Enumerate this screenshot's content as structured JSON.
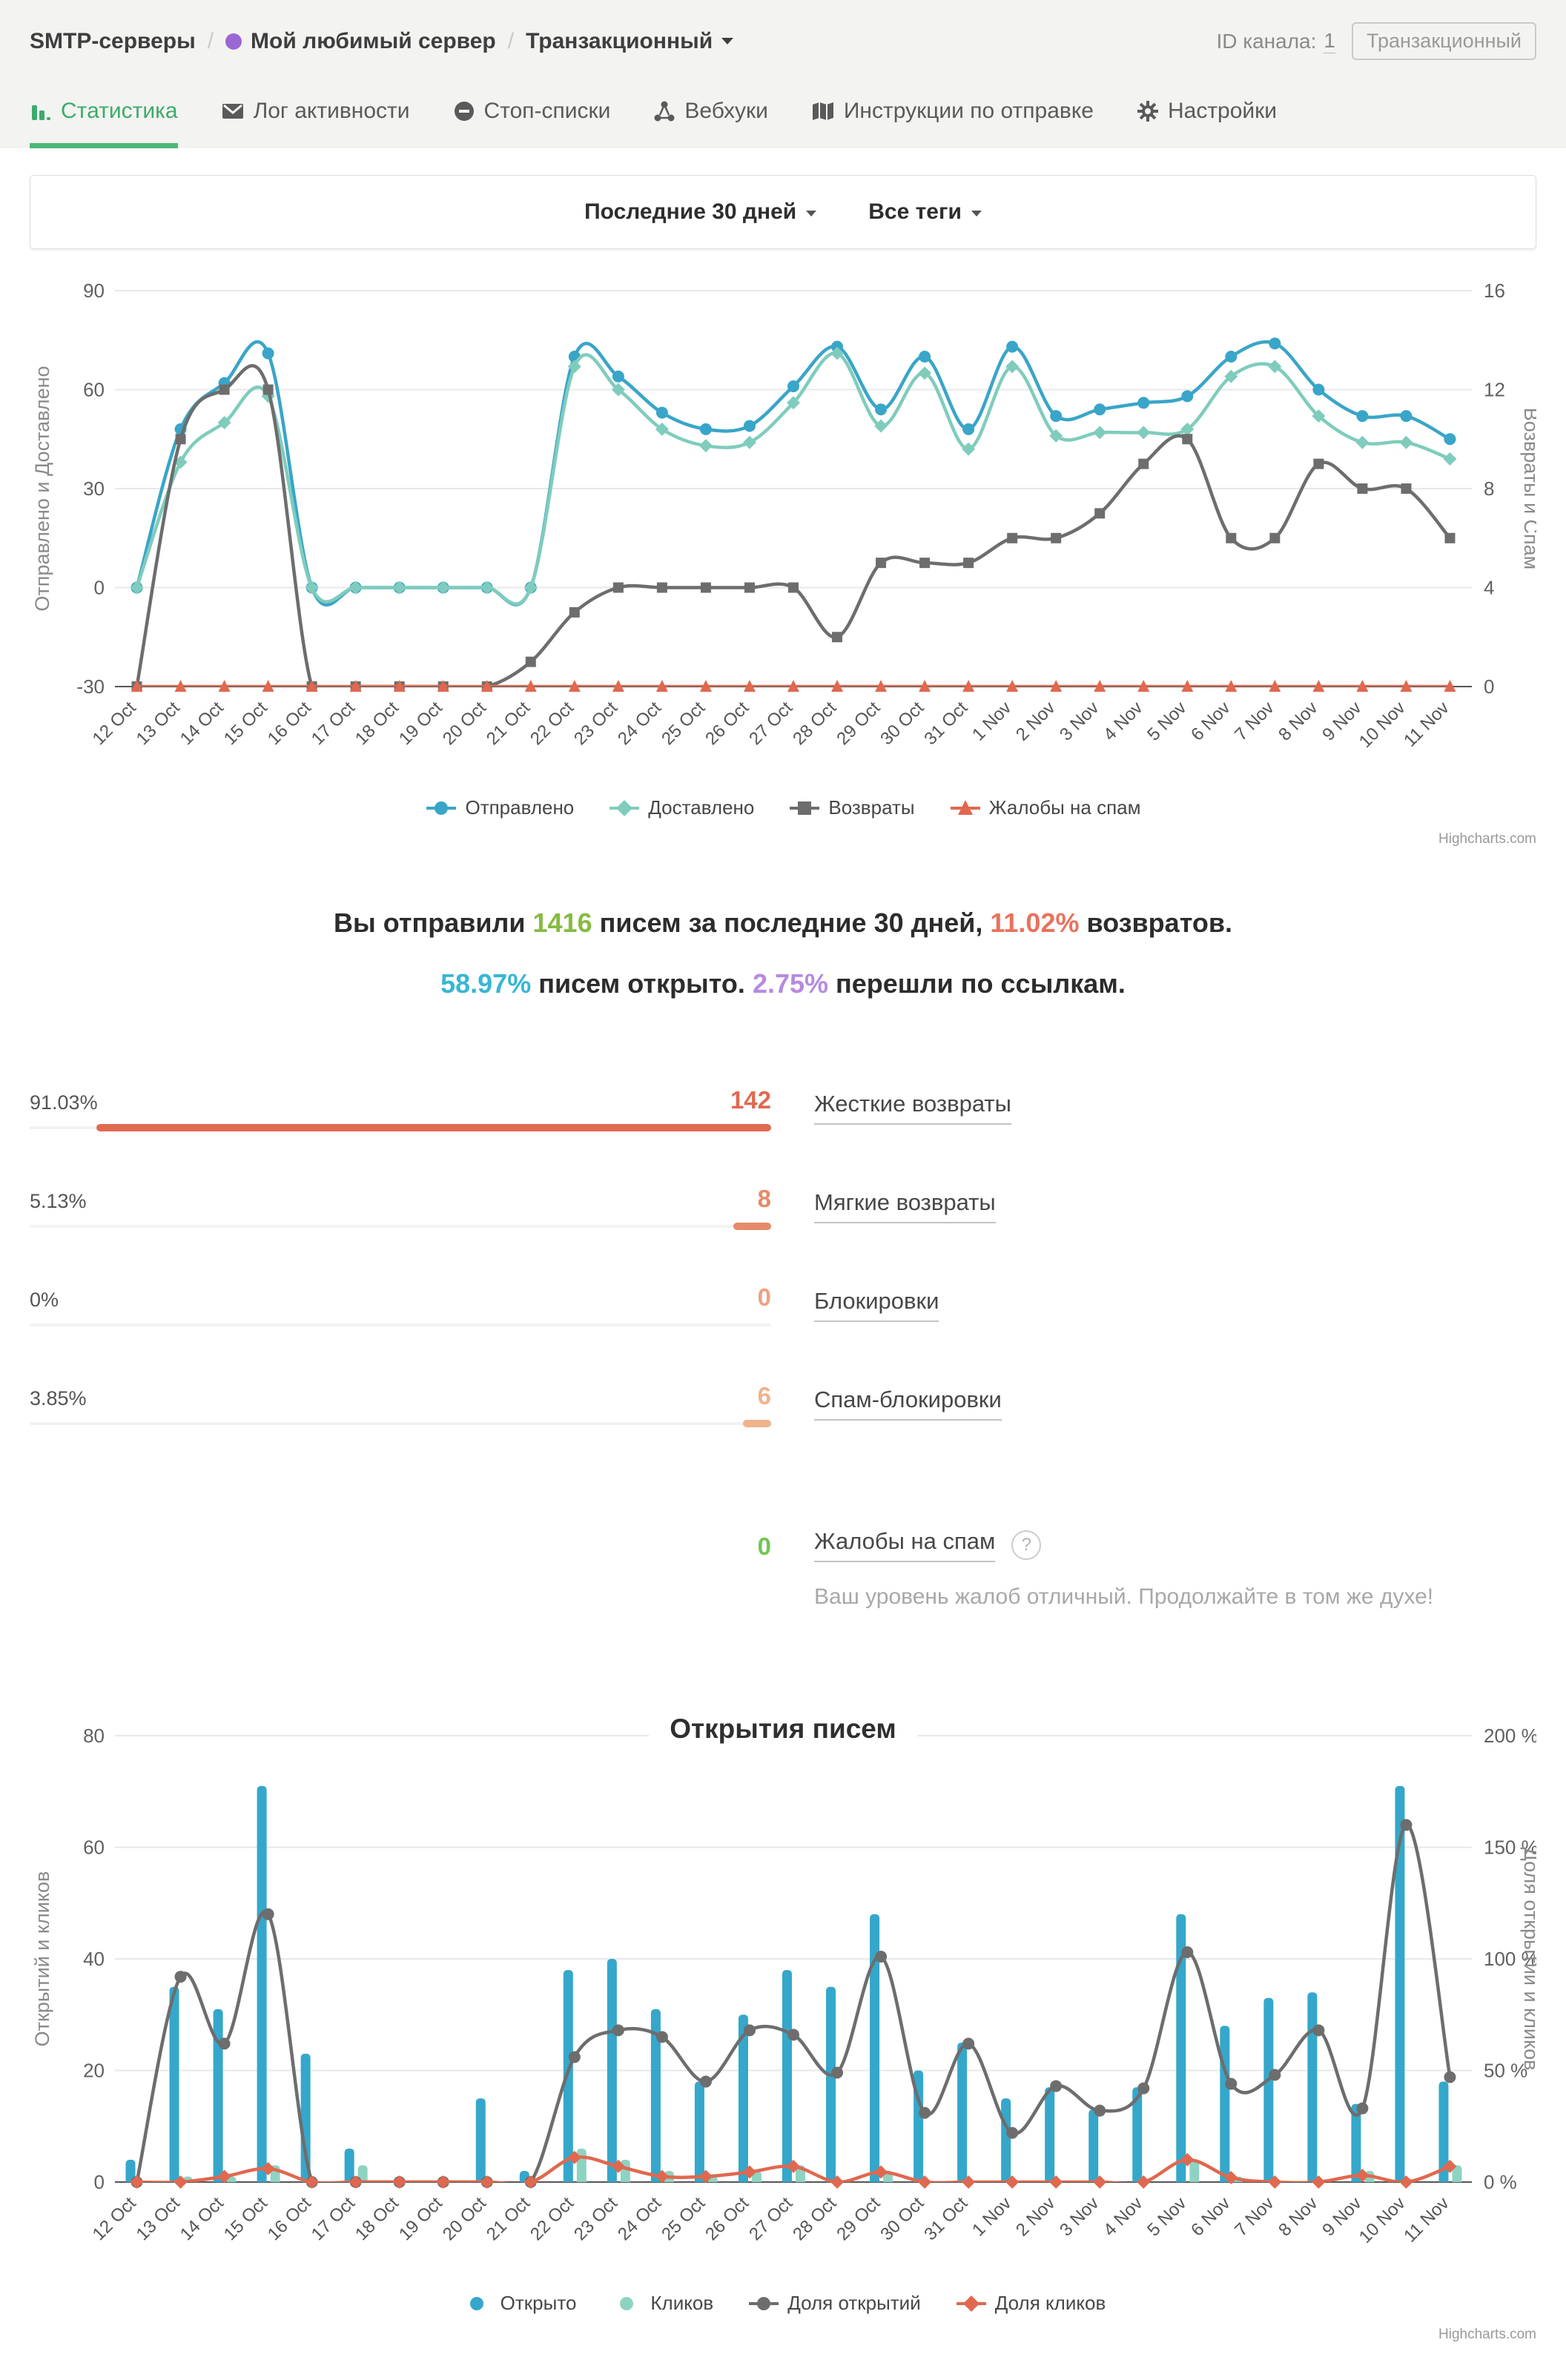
{
  "breadcrumb": {
    "root": "SMTP-серверы",
    "server": "Мой любимый сервер",
    "channel": "Транзакционный"
  },
  "header_right": {
    "id_label": "ID канала:",
    "id_value": "1",
    "badge": "Транзакционный"
  },
  "tabs": [
    {
      "label": "Статистика",
      "icon": "stats-icon",
      "active": true
    },
    {
      "label": "Лог активности",
      "icon": "envelope-icon",
      "active": false
    },
    {
      "label": "Стоп-списки",
      "icon": "stop-icon",
      "active": false
    },
    {
      "label": "Вебхуки",
      "icon": "webhook-icon",
      "active": false
    },
    {
      "label": "Инструкции по отправке",
      "icon": "map-icon",
      "active": false
    },
    {
      "label": "Настройки",
      "icon": "gear-icon",
      "active": false
    }
  ],
  "filters": {
    "period": "Последние 30 дней",
    "tags": "Все теги"
  },
  "colors": {
    "sent": "#39a5c8",
    "delivered": "#7fccbd",
    "bounces": "#6d6d6d",
    "spam": "#e0684f",
    "opens": "#35a7cb",
    "clicks": "#8ed3c2",
    "open_rate": "#6d6d6d",
    "click_rate": "#e0684f",
    "accent_green": "#4db878",
    "grid": "#e8e8e8",
    "axis_line": "#555555"
  },
  "chart_data": [
    {
      "type": "line",
      "title": "",
      "categories": [
        "12 Oct",
        "13 Oct",
        "14 Oct",
        "15 Oct",
        "16 Oct",
        "17 Oct",
        "18 Oct",
        "19 Oct",
        "20 Oct",
        "21 Oct",
        "22 Oct",
        "23 Oct",
        "24 Oct",
        "25 Oct",
        "26 Oct",
        "27 Oct",
        "28 Oct",
        "29 Oct",
        "30 Oct",
        "31 Oct",
        "1 Nov",
        "2 Nov",
        "3 Nov",
        "4 Nov",
        "5 Nov",
        "6 Nov",
        "7 Nov",
        "8 Nov",
        "9 Nov",
        "10 Nov",
        "11 Nov"
      ],
      "left_axis": {
        "title": "Отправлено и Доставлено",
        "min": -30,
        "max": 90,
        "ticks": [
          -30,
          0,
          30,
          60,
          90
        ],
        "suffix": ""
      },
      "right_axis": {
        "title": "Возвраты и Спам",
        "min": 0,
        "max": 16,
        "ticks": [
          0,
          4,
          8,
          12,
          16
        ],
        "suffix": ""
      },
      "legend_position": "bottom",
      "grid": true,
      "series": [
        {
          "key": "sent",
          "name": "Отправлено",
          "kind": "line",
          "axis": "left",
          "marker": "circle",
          "values": [
            0,
            48,
            62,
            71,
            0,
            0,
            0,
            0,
            0,
            0,
            70,
            64,
            53,
            48,
            49,
            61,
            73,
            54,
            70,
            48,
            73,
            52,
            54,
            56,
            58,
            70,
            74,
            60,
            52,
            52,
            45
          ]
        },
        {
          "key": "delivered",
          "name": "Доставлено",
          "kind": "line",
          "axis": "left",
          "marker": "diamond",
          "values": [
            0,
            38,
            50,
            58,
            0,
            0,
            0,
            0,
            0,
            0,
            67,
            60,
            48,
            43,
            44,
            56,
            71,
            49,
            65,
            42,
            67,
            46,
            47,
            47,
            48,
            64,
            67,
            52,
            44,
            44,
            39
          ]
        },
        {
          "key": "bounces",
          "name": "Возвраты",
          "kind": "line",
          "axis": "right",
          "marker": "square",
          "values": [
            0,
            10,
            12,
            12,
            0,
            0,
            0,
            0,
            0,
            1,
            3,
            4,
            4,
            4,
            4,
            4,
            2,
            5,
            5,
            5,
            6,
            6,
            7,
            9,
            10,
            6,
            6,
            9,
            8,
            8,
            6
          ]
        },
        {
          "key": "spam",
          "name": "Жалобы на спам",
          "kind": "line",
          "axis": "right",
          "marker": "triangle",
          "values": [
            0,
            0,
            0,
            0,
            0,
            0,
            0,
            0,
            0,
            0,
            0,
            0,
            0,
            0,
            0,
            0,
            0,
            0,
            0,
            0,
            0,
            0,
            0,
            0,
            0,
            0,
            0,
            0,
            0,
            0,
            0
          ]
        }
      ]
    },
    {
      "type": "bar",
      "title": "Открытия писем",
      "categories": [
        "12 Oct",
        "13 Oct",
        "14 Oct",
        "15 Oct",
        "16 Oct",
        "17 Oct",
        "18 Oct",
        "19 Oct",
        "20 Oct",
        "21 Oct",
        "22 Oct",
        "23 Oct",
        "24 Oct",
        "25 Oct",
        "26 Oct",
        "27 Oct",
        "28 Oct",
        "29 Oct",
        "30 Oct",
        "31 Oct",
        "1 Nov",
        "2 Nov",
        "3 Nov",
        "4 Nov",
        "5 Nov",
        "6 Nov",
        "7 Nov",
        "8 Nov",
        "9 Nov",
        "10 Nov",
        "11 Nov"
      ],
      "left_axis": {
        "title": "Открытий и кликов",
        "min": 0,
        "max": 80,
        "ticks": [
          0,
          20,
          40,
          60,
          80
        ],
        "suffix": ""
      },
      "right_axis": {
        "title": "Доля открытий и кликов",
        "min": 0,
        "max": 200,
        "ticks": [
          0,
          50,
          100,
          150,
          200
        ],
        "suffix": " %"
      },
      "legend_position": "bottom",
      "grid": true,
      "series": [
        {
          "key": "opens",
          "name": "Открыто",
          "kind": "bar",
          "axis": "left",
          "marker": "circle",
          "values": [
            4,
            35,
            31,
            71,
            23,
            6,
            0,
            0,
            15,
            2,
            38,
            40,
            31,
            18,
            30,
            38,
            35,
            48,
            20,
            25,
            15,
            17,
            13,
            17,
            48,
            28,
            33,
            34,
            14,
            71,
            18
          ]
        },
        {
          "key": "clicks",
          "name": "Кликов",
          "kind": "bar",
          "axis": "left",
          "marker": "circle",
          "values": [
            0,
            1,
            1,
            3,
            0,
            3,
            0,
            0,
            0,
            0,
            6,
            4,
            2,
            1,
            2,
            3,
            0,
            2,
            0,
            0,
            0,
            0,
            0,
            0,
            4,
            1,
            0,
            0,
            2,
            0,
            3
          ]
        },
        {
          "key": "open_rate",
          "name": "Доля открытий",
          "kind": "line",
          "axis": "right",
          "marker": "circle",
          "values": [
            0,
            92,
            62,
            120,
            0,
            0,
            0,
            0,
            0,
            0,
            56,
            68,
            65,
            45,
            68,
            66,
            49,
            101,
            31,
            62,
            22,
            43,
            32,
            42,
            103,
            44,
            48,
            68,
            33,
            160,
            47
          ]
        },
        {
          "key": "click_rate",
          "name": "Доля кликов",
          "kind": "line",
          "axis": "right",
          "marker": "diamond",
          "values": [
            0,
            0,
            2.5,
            6,
            0,
            0,
            0,
            0,
            0,
            0,
            11,
            7,
            2.5,
            2.5,
            4.5,
            7,
            0,
            4.5,
            0,
            0,
            0,
            0,
            0,
            0,
            10,
            2,
            0,
            0,
            3,
            0,
            7
          ]
        }
      ]
    }
  ],
  "summary": {
    "l1_p1": "Вы отправили ",
    "l1_sent": "1416",
    "l1_p2": " писем за последние 30 дней, ",
    "l1_bounce": "11.02%",
    "l1_p3": " возвратов.",
    "l2_open": "58.97%",
    "l2_p1": " писем открыто. ",
    "l2_click": "2.75%",
    "l2_p2": " перешли по ссылкам.",
    "sent_color": "#86bb40",
    "bounce_color": "#e8735c",
    "open_color": "#38b6d4",
    "click_color": "#b68ae0"
  },
  "bounce_stats": {
    "rows": [
      {
        "pct": "91.03%",
        "count": "142",
        "label": "Жесткие возвраты",
        "bar_pct": 91.03,
        "color": "#e06a50"
      },
      {
        "pct": "5.13%",
        "count": "8",
        "label": "Мягкие возвраты",
        "bar_pct": 5.13,
        "color": "#e58b69"
      },
      {
        "pct": "0%",
        "count": "0",
        "label": "Блокировки",
        "bar_pct": 0,
        "color": "#eda184"
      },
      {
        "pct": "3.85%",
        "count": "6",
        "label": "Спам-блокировки",
        "bar_pct": 3.85,
        "color": "#f0b28b"
      }
    ]
  },
  "complaints": {
    "count": "0",
    "count_color": "#71c64f",
    "label": "Жалобы на спам",
    "help": "?",
    "note": "Ваш уровень жалоб отличный. Продолжайте в том же духе!"
  },
  "credits": "Highcharts.com"
}
